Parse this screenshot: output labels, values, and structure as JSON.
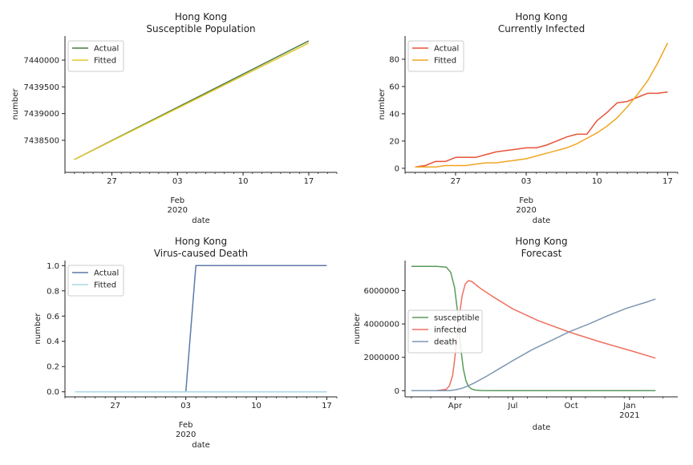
{
  "colors": {
    "actual_dark": "#4a7a45",
    "fitted_yellow": "#e5c72a",
    "actual_red": "#e8533a",
    "fitted_orange": "#f0a623",
    "actual_blue": "#5b7aa8",
    "fitted_lightblue": "#a8d8e6",
    "susceptible": "#5a9a5c",
    "infected": "#f07060",
    "death": "#7f97b3"
  },
  "chart_data": [
    {
      "type": "line",
      "title": "Hong Kong",
      "subtitle": "Susceptible Population",
      "xlabel": "date",
      "ylabel": "number",
      "date_extra": [
        "Feb",
        "2020"
      ],
      "xlim": [
        0,
        29
      ],
      "ylim": [
        7437900,
        7440450
      ],
      "xticks": [
        {
          "x": 5,
          "label": "27"
        },
        {
          "x": 12,
          "label": "03"
        },
        {
          "x": 19,
          "label": "10"
        },
        {
          "x": 26,
          "label": "17"
        }
      ],
      "yticks": [
        {
          "v": 7438500,
          "label": "7438500"
        },
        {
          "v": 7439000,
          "label": "7439000"
        },
        {
          "v": 7439500,
          "label": "7439500"
        },
        {
          "v": 7440000,
          "label": "7440000"
        }
      ],
      "legend": {
        "placement": "upper-left",
        "entries": [
          "Actual",
          "Fitted"
        ]
      },
      "series": [
        {
          "name": "Actual",
          "color_key": "actual_dark",
          "x": [
            1,
            26
          ],
          "values": [
            7438140,
            7440360
          ]
        },
        {
          "name": "Fitted",
          "color_key": "fitted_yellow",
          "x": [
            1,
            26
          ],
          "values": [
            7438140,
            7440320
          ]
        }
      ]
    },
    {
      "type": "line",
      "title": "Hong Kong",
      "subtitle": "Currently Infected",
      "xlabel": "date",
      "ylabel": "number",
      "date_extra": [
        "Feb",
        "2020"
      ],
      "xlim": [
        0,
        27
      ],
      "ylim": [
        -3,
        97
      ],
      "xticks": [
        {
          "x": 5,
          "label": "27"
        },
        {
          "x": 12,
          "label": "03"
        },
        {
          "x": 19,
          "label": "10"
        },
        {
          "x": 26,
          "label": "17"
        }
      ],
      "yticks": [
        {
          "v": 0,
          "label": "0"
        },
        {
          "v": 20,
          "label": "20"
        },
        {
          "v": 40,
          "label": "40"
        },
        {
          "v": 60,
          "label": "60"
        },
        {
          "v": 80,
          "label": "80"
        }
      ],
      "legend": {
        "placement": "upper-left",
        "entries": [
          "Actual",
          "Fitted"
        ]
      },
      "series": [
        {
          "name": "Actual",
          "color_key": "actual_red",
          "x": [
            1,
            2,
            3,
            4,
            5,
            6,
            7,
            8,
            9,
            10,
            11,
            12,
            13,
            14,
            15,
            16,
            17,
            18,
            19,
            20,
            21,
            22,
            23,
            24,
            25,
            26
          ],
          "values": [
            1,
            2,
            5,
            5,
            8,
            8,
            8,
            10,
            12,
            13,
            14,
            15,
            15,
            17,
            20,
            23,
            25,
            25,
            35,
            41,
            48,
            49,
            52,
            55,
            55,
            56
          ]
        },
        {
          "name": "Fitted",
          "color_key": "fitted_orange",
          "x": [
            1,
            2,
            3,
            4,
            5,
            6,
            7,
            8,
            9,
            10,
            11,
            12,
            13,
            14,
            15,
            16,
            17,
            18,
            19,
            20,
            21,
            22,
            23,
            24,
            25,
            26
          ],
          "values": [
            1,
            1,
            1,
            2,
            2,
            2,
            3,
            4,
            4,
            5,
            6,
            7,
            9,
            11,
            13,
            15,
            18,
            22,
            26,
            31,
            37,
            45,
            54,
            64,
            77,
            92
          ]
        }
      ]
    },
    {
      "type": "line",
      "title": "Hong Kong",
      "subtitle": "Virus-caused Death",
      "xlabel": "date",
      "ylabel": "number",
      "date_extra": [
        "Feb",
        "2020"
      ],
      "xlim": [
        0,
        27
      ],
      "ylim": [
        -0.04,
        1.04
      ],
      "xticks": [
        {
          "x": 5,
          "label": "27"
        },
        {
          "x": 12,
          "label": "03"
        },
        {
          "x": 19,
          "label": "10"
        },
        {
          "x": 26,
          "label": "17"
        }
      ],
      "yticks": [
        {
          "v": 0,
          "label": "0.0"
        },
        {
          "v": 0.2,
          "label": "0.2"
        },
        {
          "v": 0.4,
          "label": "0.4"
        },
        {
          "v": 0.6,
          "label": "0.6"
        },
        {
          "v": 0.8,
          "label": "0.8"
        },
        {
          "v": 1.0,
          "label": "1.0"
        }
      ],
      "legend": {
        "placement": "upper-left",
        "entries": [
          "Actual",
          "Fitted"
        ]
      },
      "series": [
        {
          "name": "Actual",
          "color_key": "actual_blue",
          "x": [
            1,
            12,
            13,
            26
          ],
          "values": [
            0,
            0,
            1,
            1
          ]
        },
        {
          "name": "Fitted",
          "color_key": "fitted_lightblue",
          "x": [
            1,
            26
          ],
          "values": [
            0,
            0
          ]
        }
      ]
    },
    {
      "type": "line",
      "title": "Hong Kong",
      "subtitle": "Forecast",
      "xlabel": "date",
      "ylabel": "number",
      "date_extra": [],
      "xlim": [
        -10,
        420
      ],
      "ylim": [
        -370000,
        7800000
      ],
      "xticks": [
        {
          "x": 69,
          "label": "Apr"
        },
        {
          "x": 160,
          "label": "Jul"
        },
        {
          "x": 252,
          "label": "Oct"
        },
        {
          "x": 344,
          "label": "Jan",
          "label2": "2021"
        }
      ],
      "yticks": [
        {
          "v": 0,
          "label": "0"
        },
        {
          "v": 2000000,
          "label": "2000000"
        },
        {
          "v": 4000000,
          "label": "4000000"
        },
        {
          "v": 6000000,
          "label": "6000000"
        }
      ],
      "legend": {
        "placement": "center-left",
        "entries": [
          "susceptible",
          "infected",
          "death"
        ]
      },
      "series": [
        {
          "name": "susceptible",
          "color_key": "susceptible",
          "x": [
            0,
            40,
            55,
            62,
            68,
            72,
            75,
            78,
            82,
            86,
            90,
            95,
            100,
            110,
            130,
            200,
            300,
            385
          ],
          "values": [
            7450000,
            7450000,
            7400000,
            7100000,
            6200000,
            5000000,
            3800000,
            2500000,
            1300000,
            600000,
            250000,
            100000,
            40000,
            10000,
            0,
            0,
            0,
            0
          ]
        },
        {
          "name": "infected",
          "color_key": "infected",
          "x": [
            0,
            40,
            55,
            60,
            65,
            68,
            72,
            76,
            80,
            85,
            90,
            95,
            100,
            110,
            130,
            160,
            200,
            250,
            300,
            350,
            385
          ],
          "values": [
            0,
            0,
            80000,
            300000,
            900000,
            1800000,
            3200000,
            4600000,
            5700000,
            6400000,
            6600000,
            6550000,
            6400000,
            6100000,
            5600000,
            4900000,
            4200000,
            3500000,
            2900000,
            2350000,
            1950000
          ]
        },
        {
          "name": "death",
          "color_key": "death",
          "x": [
            0,
            60,
            70,
            80,
            90,
            100,
            120,
            140,
            160,
            190,
            220,
            250,
            280,
            310,
            340,
            370,
            385
          ],
          "values": [
            0,
            5000,
            60000,
            150000,
            300000,
            480000,
            900000,
            1350000,
            1800000,
            2450000,
            3000000,
            3550000,
            4000000,
            4500000,
            4950000,
            5300000,
            5500000
          ]
        }
      ]
    }
  ]
}
